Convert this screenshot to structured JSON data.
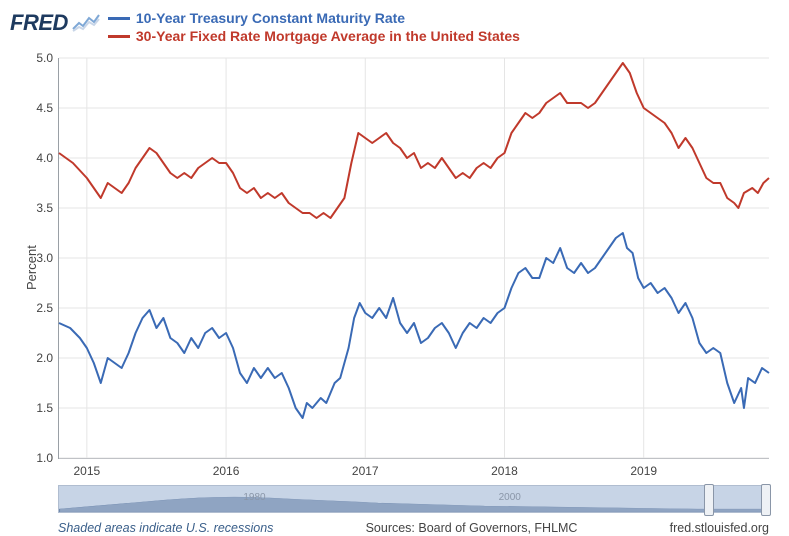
{
  "logo": {
    "text": "FRED"
  },
  "legend": [
    {
      "label": "10-Year Treasury Constant Maturity Rate",
      "color": "#3a6ab5"
    },
    {
      "label": "30-Year Fixed Rate Mortgage Average in the United States",
      "color": "#c0392b"
    }
  ],
  "chart": {
    "type": "line",
    "ylabel": "Percent",
    "ylim": [
      1.0,
      5.0
    ],
    "ytick_step": 0.5,
    "yticks": [
      "1.0",
      "1.5",
      "2.0",
      "2.5",
      "3.0",
      "3.5",
      "4.0",
      "4.5",
      "5.0"
    ],
    "xlim": [
      2014.8,
      2019.9
    ],
    "xticks": [
      2015,
      2016,
      2017,
      2018,
      2019
    ],
    "xtick_labels": [
      "2015",
      "2016",
      "2017",
      "2018",
      "2019"
    ],
    "grid_color": "#e5e5e5",
    "background_color": "#ffffff",
    "border_color": "#9aa0a6",
    "line_width": 2,
    "series": [
      {
        "name": "treasury-10yr",
        "color": "#3a6ab5",
        "values": [
          [
            2014.8,
            2.35
          ],
          [
            2014.88,
            2.3
          ],
          [
            2014.95,
            2.2
          ],
          [
            2015.0,
            2.1
          ],
          [
            2015.05,
            1.95
          ],
          [
            2015.1,
            1.75
          ],
          [
            2015.15,
            2.0
          ],
          [
            2015.2,
            1.95
          ],
          [
            2015.25,
            1.9
          ],
          [
            2015.3,
            2.05
          ],
          [
            2015.35,
            2.25
          ],
          [
            2015.4,
            2.4
          ],
          [
            2015.45,
            2.48
          ],
          [
            2015.5,
            2.3
          ],
          [
            2015.55,
            2.4
          ],
          [
            2015.6,
            2.2
          ],
          [
            2015.65,
            2.15
          ],
          [
            2015.7,
            2.05
          ],
          [
            2015.75,
            2.2
          ],
          [
            2015.8,
            2.1
          ],
          [
            2015.85,
            2.25
          ],
          [
            2015.9,
            2.3
          ],
          [
            2015.95,
            2.2
          ],
          [
            2016.0,
            2.25
          ],
          [
            2016.05,
            2.1
          ],
          [
            2016.1,
            1.85
          ],
          [
            2016.15,
            1.75
          ],
          [
            2016.2,
            1.9
          ],
          [
            2016.25,
            1.8
          ],
          [
            2016.3,
            1.9
          ],
          [
            2016.35,
            1.8
          ],
          [
            2016.4,
            1.85
          ],
          [
            2016.45,
            1.7
          ],
          [
            2016.5,
            1.5
          ],
          [
            2016.55,
            1.4
          ],
          [
            2016.58,
            1.55
          ],
          [
            2016.62,
            1.5
          ],
          [
            2016.68,
            1.6
          ],
          [
            2016.72,
            1.55
          ],
          [
            2016.78,
            1.75
          ],
          [
            2016.82,
            1.8
          ],
          [
            2016.88,
            2.1
          ],
          [
            2016.92,
            2.4
          ],
          [
            2016.96,
            2.55
          ],
          [
            2017.0,
            2.45
          ],
          [
            2017.05,
            2.4
          ],
          [
            2017.1,
            2.5
          ],
          [
            2017.15,
            2.4
          ],
          [
            2017.2,
            2.6
          ],
          [
            2017.25,
            2.35
          ],
          [
            2017.3,
            2.25
          ],
          [
            2017.35,
            2.35
          ],
          [
            2017.4,
            2.15
          ],
          [
            2017.45,
            2.2
          ],
          [
            2017.5,
            2.3
          ],
          [
            2017.55,
            2.35
          ],
          [
            2017.6,
            2.25
          ],
          [
            2017.65,
            2.1
          ],
          [
            2017.7,
            2.25
          ],
          [
            2017.75,
            2.35
          ],
          [
            2017.8,
            2.3
          ],
          [
            2017.85,
            2.4
          ],
          [
            2017.9,
            2.35
          ],
          [
            2017.95,
            2.45
          ],
          [
            2018.0,
            2.5
          ],
          [
            2018.05,
            2.7
          ],
          [
            2018.1,
            2.85
          ],
          [
            2018.15,
            2.9
          ],
          [
            2018.2,
            2.8
          ],
          [
            2018.25,
            2.8
          ],
          [
            2018.3,
            3.0
          ],
          [
            2018.35,
            2.95
          ],
          [
            2018.4,
            3.1
          ],
          [
            2018.45,
            2.9
          ],
          [
            2018.5,
            2.85
          ],
          [
            2018.55,
            2.95
          ],
          [
            2018.6,
            2.85
          ],
          [
            2018.65,
            2.9
          ],
          [
            2018.7,
            3.0
          ],
          [
            2018.75,
            3.1
          ],
          [
            2018.8,
            3.2
          ],
          [
            2018.85,
            3.25
          ],
          [
            2018.88,
            3.1
          ],
          [
            2018.92,
            3.05
          ],
          [
            2018.96,
            2.8
          ],
          [
            2019.0,
            2.7
          ],
          [
            2019.05,
            2.75
          ],
          [
            2019.1,
            2.65
          ],
          [
            2019.15,
            2.7
          ],
          [
            2019.2,
            2.6
          ],
          [
            2019.25,
            2.45
          ],
          [
            2019.3,
            2.55
          ],
          [
            2019.35,
            2.4
          ],
          [
            2019.4,
            2.15
          ],
          [
            2019.45,
            2.05
          ],
          [
            2019.5,
            2.1
          ],
          [
            2019.55,
            2.05
          ],
          [
            2019.6,
            1.75
          ],
          [
            2019.65,
            1.55
          ],
          [
            2019.7,
            1.7
          ],
          [
            2019.72,
            1.5
          ],
          [
            2019.75,
            1.8
          ],
          [
            2019.8,
            1.75
          ],
          [
            2019.85,
            1.9
          ],
          [
            2019.9,
            1.85
          ]
        ]
      },
      {
        "name": "mortgage-30yr",
        "color": "#c0392b",
        "values": [
          [
            2014.8,
            4.05
          ],
          [
            2014.9,
            3.95
          ],
          [
            2015.0,
            3.8
          ],
          [
            2015.05,
            3.7
          ],
          [
            2015.1,
            3.6
          ],
          [
            2015.15,
            3.75
          ],
          [
            2015.2,
            3.7
          ],
          [
            2015.25,
            3.65
          ],
          [
            2015.3,
            3.75
          ],
          [
            2015.35,
            3.9
          ],
          [
            2015.4,
            4.0
          ],
          [
            2015.45,
            4.1
          ],
          [
            2015.5,
            4.05
          ],
          [
            2015.55,
            3.95
          ],
          [
            2015.6,
            3.85
          ],
          [
            2015.65,
            3.8
          ],
          [
            2015.7,
            3.85
          ],
          [
            2015.75,
            3.8
          ],
          [
            2015.8,
            3.9
          ],
          [
            2015.85,
            3.95
          ],
          [
            2015.9,
            4.0
          ],
          [
            2015.95,
            3.95
          ],
          [
            2016.0,
            3.95
          ],
          [
            2016.05,
            3.85
          ],
          [
            2016.1,
            3.7
          ],
          [
            2016.15,
            3.65
          ],
          [
            2016.2,
            3.7
          ],
          [
            2016.25,
            3.6
          ],
          [
            2016.3,
            3.65
          ],
          [
            2016.35,
            3.6
          ],
          [
            2016.4,
            3.65
          ],
          [
            2016.45,
            3.55
          ],
          [
            2016.5,
            3.5
          ],
          [
            2016.55,
            3.45
          ],
          [
            2016.6,
            3.45
          ],
          [
            2016.65,
            3.4
          ],
          [
            2016.7,
            3.45
          ],
          [
            2016.75,
            3.4
          ],
          [
            2016.8,
            3.5
          ],
          [
            2016.85,
            3.6
          ],
          [
            2016.9,
            3.95
          ],
          [
            2016.95,
            4.25
          ],
          [
            2017.0,
            4.2
          ],
          [
            2017.05,
            4.15
          ],
          [
            2017.1,
            4.2
          ],
          [
            2017.15,
            4.25
          ],
          [
            2017.2,
            4.15
          ],
          [
            2017.25,
            4.1
          ],
          [
            2017.3,
            4.0
          ],
          [
            2017.35,
            4.05
          ],
          [
            2017.4,
            3.9
          ],
          [
            2017.45,
            3.95
          ],
          [
            2017.5,
            3.9
          ],
          [
            2017.55,
            4.0
          ],
          [
            2017.6,
            3.9
          ],
          [
            2017.65,
            3.8
          ],
          [
            2017.7,
            3.85
          ],
          [
            2017.75,
            3.8
          ],
          [
            2017.8,
            3.9
          ],
          [
            2017.85,
            3.95
          ],
          [
            2017.9,
            3.9
          ],
          [
            2017.95,
            4.0
          ],
          [
            2018.0,
            4.05
          ],
          [
            2018.05,
            4.25
          ],
          [
            2018.1,
            4.35
          ],
          [
            2018.15,
            4.45
          ],
          [
            2018.2,
            4.4
          ],
          [
            2018.25,
            4.45
          ],
          [
            2018.3,
            4.55
          ],
          [
            2018.35,
            4.6
          ],
          [
            2018.4,
            4.65
          ],
          [
            2018.45,
            4.55
          ],
          [
            2018.5,
            4.55
          ],
          [
            2018.55,
            4.55
          ],
          [
            2018.6,
            4.5
          ],
          [
            2018.65,
            4.55
          ],
          [
            2018.7,
            4.65
          ],
          [
            2018.75,
            4.75
          ],
          [
            2018.8,
            4.85
          ],
          [
            2018.85,
            4.95
          ],
          [
            2018.9,
            4.85
          ],
          [
            2018.95,
            4.65
          ],
          [
            2019.0,
            4.5
          ],
          [
            2019.05,
            4.45
          ],
          [
            2019.1,
            4.4
          ],
          [
            2019.15,
            4.35
          ],
          [
            2019.2,
            4.25
          ],
          [
            2019.25,
            4.1
          ],
          [
            2019.3,
            4.2
          ],
          [
            2019.35,
            4.1
          ],
          [
            2019.4,
            3.95
          ],
          [
            2019.45,
            3.8
          ],
          [
            2019.5,
            3.75
          ],
          [
            2019.55,
            3.75
          ],
          [
            2019.6,
            3.6
          ],
          [
            2019.65,
            3.55
          ],
          [
            2019.68,
            3.5
          ],
          [
            2019.72,
            3.65
          ],
          [
            2019.78,
            3.7
          ],
          [
            2019.82,
            3.65
          ],
          [
            2019.86,
            3.75
          ],
          [
            2019.9,
            3.8
          ]
        ]
      }
    ]
  },
  "range_slider": {
    "background": "#c7d4e6",
    "sparkline_color": "#8fa4c2",
    "label1": "1980",
    "label2": "2000",
    "handle_left_pct": 91,
    "handle_right_pct": 99
  },
  "footer": {
    "recession_note": "Shaded areas indicate U.S. recessions",
    "source": "Sources: Board of Governors, FHLMC",
    "site": "fred.stlouisfed.org"
  }
}
